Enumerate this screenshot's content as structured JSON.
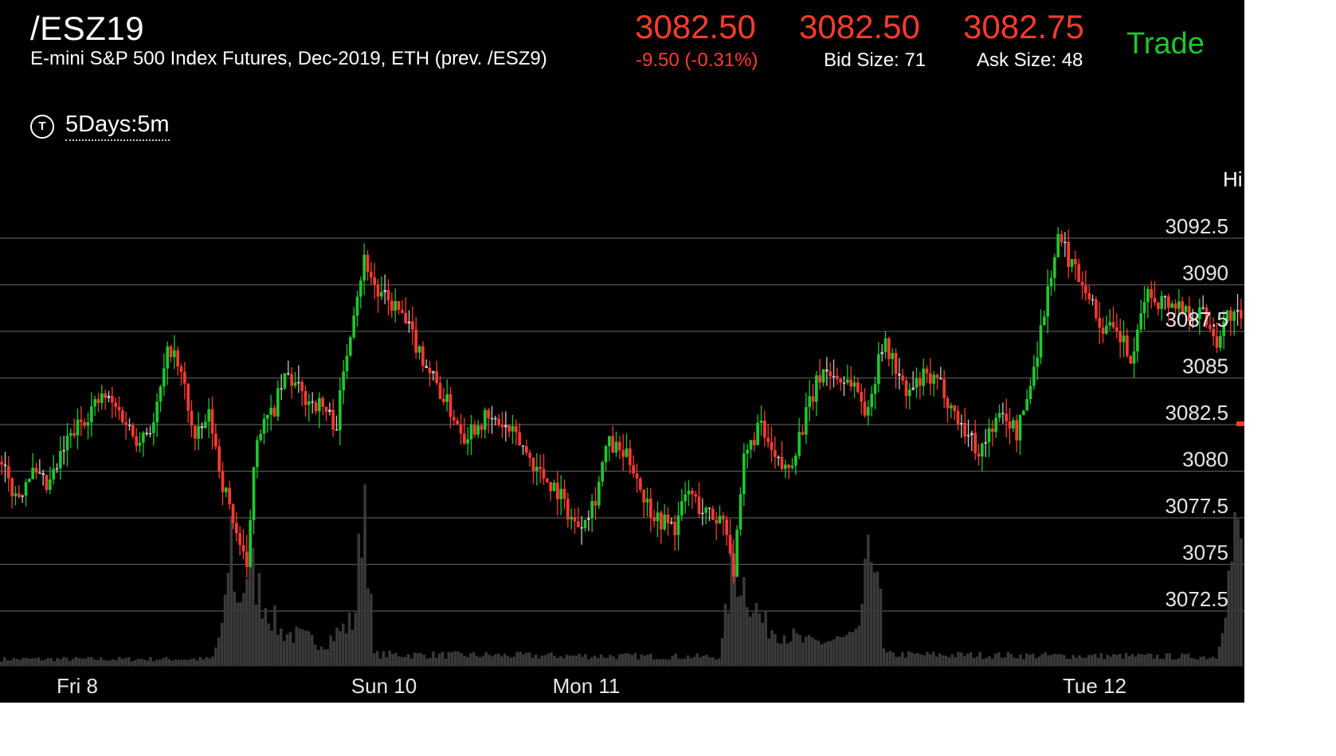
{
  "header": {
    "symbol": "/ESZ19",
    "description": "E-mini S&P 500 Index Futures, Dec-2019, ETH (prev. /ESZ9)",
    "last_price": "3082.50",
    "change": "-9.50 (-0.31%)",
    "bid_price": "3082.50",
    "bid_size": "Bid Size: 71",
    "ask_price": "3082.75",
    "ask_size": "Ask Size: 48",
    "trade_label": "Trade"
  },
  "timeframe": {
    "icon": "timer-icon",
    "icon_glyph": "T",
    "label": "5Days:5m"
  },
  "side_label": "Hi",
  "colors": {
    "up": "#1ec72d",
    "down": "#ff3b30",
    "neutral": "#c8c8c8",
    "grid": "#555555",
    "volume": "#3a3a3a",
    "text": "#ffffff"
  },
  "chart_data": {
    "type": "candlestick",
    "y_ticks": [
      "3092.5",
      "3090",
      "3087.5",
      "3085",
      "3082.5",
      "3080",
      "3077.5",
      "3075",
      "3072.5"
    ],
    "x_labels": [
      "Fri 8",
      "Sun 10",
      "Mon 11",
      "Tue 12"
    ],
    "ylim": [
      3070,
      3093
    ],
    "last_price_marker": 3082.5,
    "price_path": [
      [
        0,
        3080.5
      ],
      [
        0.015,
        3078.5
      ],
      [
        0.025,
        3080
      ],
      [
        0.04,
        3079
      ],
      [
        0.055,
        3081.5
      ],
      [
        0.07,
        3083
      ],
      [
        0.085,
        3084
      ],
      [
        0.1,
        3083
      ],
      [
        0.11,
        3081.8
      ],
      [
        0.125,
        3082.5
      ],
      [
        0.138,
        3086.8
      ],
      [
        0.15,
        3084.5
      ],
      [
        0.158,
        3081.5
      ],
      [
        0.17,
        3083
      ],
      [
        0.18,
        3079.5
      ],
      [
        0.19,
        3077.2
      ],
      [
        0.2,
        3074.5
      ],
      [
        0.207,
        3082
      ],
      [
        0.22,
        3083
      ],
      [
        0.232,
        3085.2
      ],
      [
        0.245,
        3084
      ],
      [
        0.26,
        3083.5
      ],
      [
        0.272,
        3082.5
      ],
      [
        0.285,
        3088.5
      ],
      [
        0.295,
        3091.5
      ],
      [
        0.305,
        3089.5
      ],
      [
        0.32,
        3088.8
      ],
      [
        0.335,
        3087
      ],
      [
        0.35,
        3085
      ],
      [
        0.362,
        3083.5
      ],
      [
        0.375,
        3082
      ],
      [
        0.39,
        3082.8
      ],
      [
        0.405,
        3082.5
      ],
      [
        0.42,
        3081.5
      ],
      [
        0.435,
        3080
      ],
      [
        0.45,
        3079
      ],
      [
        0.465,
        3077
      ],
      [
        0.47,
        3077.5
      ],
      [
        0.48,
        3078.5
      ],
      [
        0.49,
        3081.5
      ],
      [
        0.5,
        3081
      ],
      [
        0.51,
        3080.5
      ],
      [
        0.52,
        3078.5
      ],
      [
        0.53,
        3077.5
      ],
      [
        0.545,
        3077
      ],
      [
        0.555,
        3079
      ],
      [
        0.565,
        3078
      ],
      [
        0.575,
        3077.5
      ],
      [
        0.585,
        3077.5
      ],
      [
        0.592,
        3074.5
      ],
      [
        0.6,
        3080.5
      ],
      [
        0.612,
        3082.5
      ],
      [
        0.625,
        3080.5
      ],
      [
        0.635,
        3080
      ],
      [
        0.65,
        3083
      ],
      [
        0.663,
        3085.5
      ],
      [
        0.675,
        3085
      ],
      [
        0.688,
        3084.8
      ],
      [
        0.7,
        3083
      ],
      [
        0.71,
        3087
      ],
      [
        0.72,
        3086
      ],
      [
        0.73,
        3084
      ],
      [
        0.745,
        3085
      ],
      [
        0.76,
        3084.5
      ],
      [
        0.77,
        3083
      ],
      [
        0.78,
        3082
      ],
      [
        0.79,
        3081
      ],
      [
        0.8,
        3082.5
      ],
      [
        0.81,
        3083
      ],
      [
        0.82,
        3082
      ],
      [
        0.83,
        3084.5
      ],
      [
        0.84,
        3088
      ],
      [
        0.848,
        3091
      ],
      [
        0.853,
        3092.5
      ],
      [
        0.865,
        3091
      ],
      [
        0.875,
        3090
      ],
      [
        0.885,
        3088
      ],
      [
        0.895,
        3087.5
      ],
      [
        0.905,
        3087
      ],
      [
        0.913,
        3085.5
      ],
      [
        0.922,
        3089.5
      ],
      [
        0.935,
        3089.2
      ],
      [
        0.948,
        3089
      ],
      [
        0.96,
        3088.5
      ],
      [
        0.97,
        3088.5
      ],
      [
        0.98,
        3087
      ],
      [
        0.99,
        3088.5
      ],
      [
        1.0,
        3088
      ]
    ],
    "volume_profile": [
      [
        0,
        0.03
      ],
      [
        0.17,
        0.03
      ],
      [
        0.18,
        0.2
      ],
      [
        0.185,
        0.6
      ],
      [
        0.19,
        0.25
      ],
      [
        0.2,
        0.45
      ],
      [
        0.21,
        0.3
      ],
      [
        0.225,
        0.15
      ],
      [
        0.26,
        0.1
      ],
      [
        0.285,
        0.2
      ],
      [
        0.293,
        0.82
      ],
      [
        0.3,
        0.05
      ],
      [
        0.58,
        0.04
      ],
      [
        0.59,
        0.45
      ],
      [
        0.6,
        0.35
      ],
      [
        0.615,
        0.18
      ],
      [
        0.65,
        0.1
      ],
      [
        0.69,
        0.12
      ],
      [
        0.695,
        0.3
      ],
      [
        0.705,
        0.6
      ],
      [
        0.712,
        0.05
      ],
      [
        0.98,
        0.04
      ],
      [
        0.995,
        0.55
      ],
      [
        1.0,
        0.55
      ]
    ]
  }
}
